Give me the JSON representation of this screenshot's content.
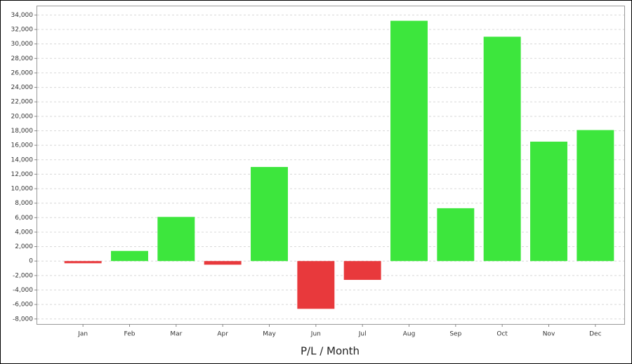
{
  "chart_data": {
    "type": "bar",
    "title": "P/L / Month",
    "categories": [
      "Jan",
      "Feb",
      "Mar",
      "Apr",
      "May",
      "Jun",
      "Jul",
      "Aug",
      "Sep",
      "Oct",
      "Nov",
      "Dec"
    ],
    "values": [
      -300,
      1400,
      6100,
      -500,
      13000,
      -6600,
      -2600,
      33200,
      7300,
      31000,
      16500,
      18100
    ],
    "positive_color": "#3de63d",
    "negative_color": "#e8393c",
    "ylim": [
      -8700,
      35200
    ],
    "yticks": [
      {
        "value": -8000,
        "label": "-8,000"
      },
      {
        "value": -6000,
        "label": "-6,000"
      },
      {
        "value": -4000,
        "label": "-4,000"
      },
      {
        "value": -2000,
        "label": "-2,000"
      },
      0,
      {
        "value": 2000,
        "label": "2,000"
      },
      {
        "value": 4000,
        "label": "4,000"
      },
      {
        "value": 6000,
        "label": "6,000"
      },
      {
        "value": 8000,
        "label": "8,000"
      },
      {
        "value": 10000,
        "label": "10,000"
      },
      {
        "value": 12000,
        "label": "12,000"
      },
      {
        "value": 14000,
        "label": "14,000"
      },
      {
        "value": 16000,
        "label": "16,000"
      },
      {
        "value": 18000,
        "label": "18,000"
      },
      {
        "value": 20000,
        "label": "20,000"
      },
      {
        "value": 22000,
        "label": "22,000"
      },
      {
        "value": 24000,
        "label": "24,000"
      },
      {
        "value": 26000,
        "label": "26,000"
      },
      {
        "value": 28000,
        "label": "28,000"
      },
      {
        "value": 30000,
        "label": "30,000"
      },
      {
        "value": 32000,
        "label": "32,000"
      },
      {
        "value": 34000,
        "label": "34,000"
      }
    ],
    "grid": true
  }
}
